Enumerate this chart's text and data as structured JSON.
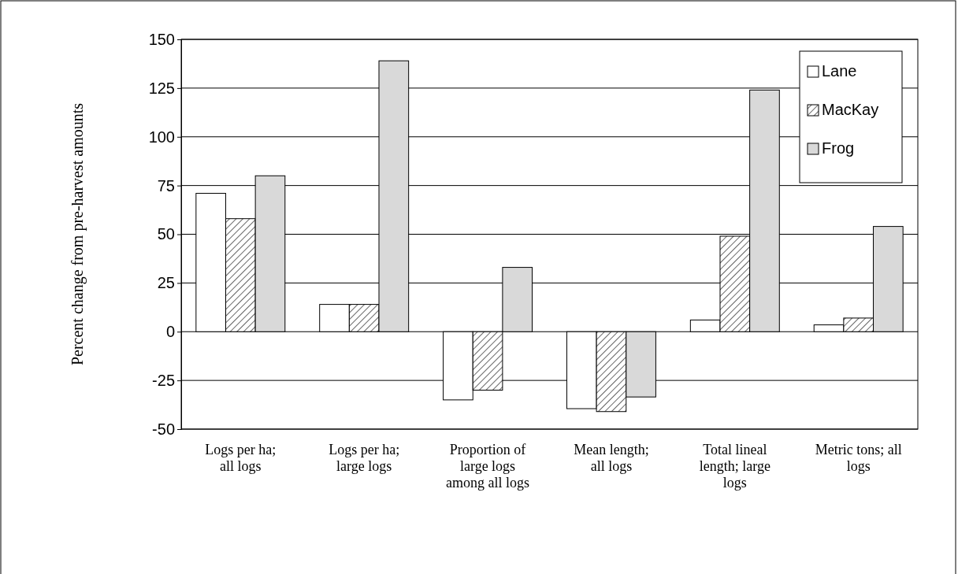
{
  "chart_data": {
    "type": "bar",
    "ylabel": "Percent change from pre-harvest amounts",
    "categories": [
      "Logs per ha; all logs",
      "Logs per ha; large logs",
      "Proportion of large logs among all logs",
      "Mean length; all logs",
      "Total lineal length; large logs",
      "Metric tons; all logs"
    ],
    "series": [
      {
        "name": "Lane",
        "color": "#ffffff",
        "values": [
          71,
          14,
          -35,
          -39.5,
          6,
          3.5
        ]
      },
      {
        "name": "MacKay",
        "color": "#000000",
        "values": [
          58,
          14,
          -30,
          -41,
          49,
          7
        ]
      },
      {
        "name": "Frog",
        "color": "#d9d9d9",
        "values": [
          80,
          139,
          33,
          -33.5,
          124,
          54
        ]
      }
    ],
    "ylim": [
      -50,
      150
    ],
    "yticks": [
      -50,
      -25,
      0,
      25,
      50,
      75,
      100,
      125,
      150
    ],
    "grid": "y",
    "legend": "top right"
  }
}
